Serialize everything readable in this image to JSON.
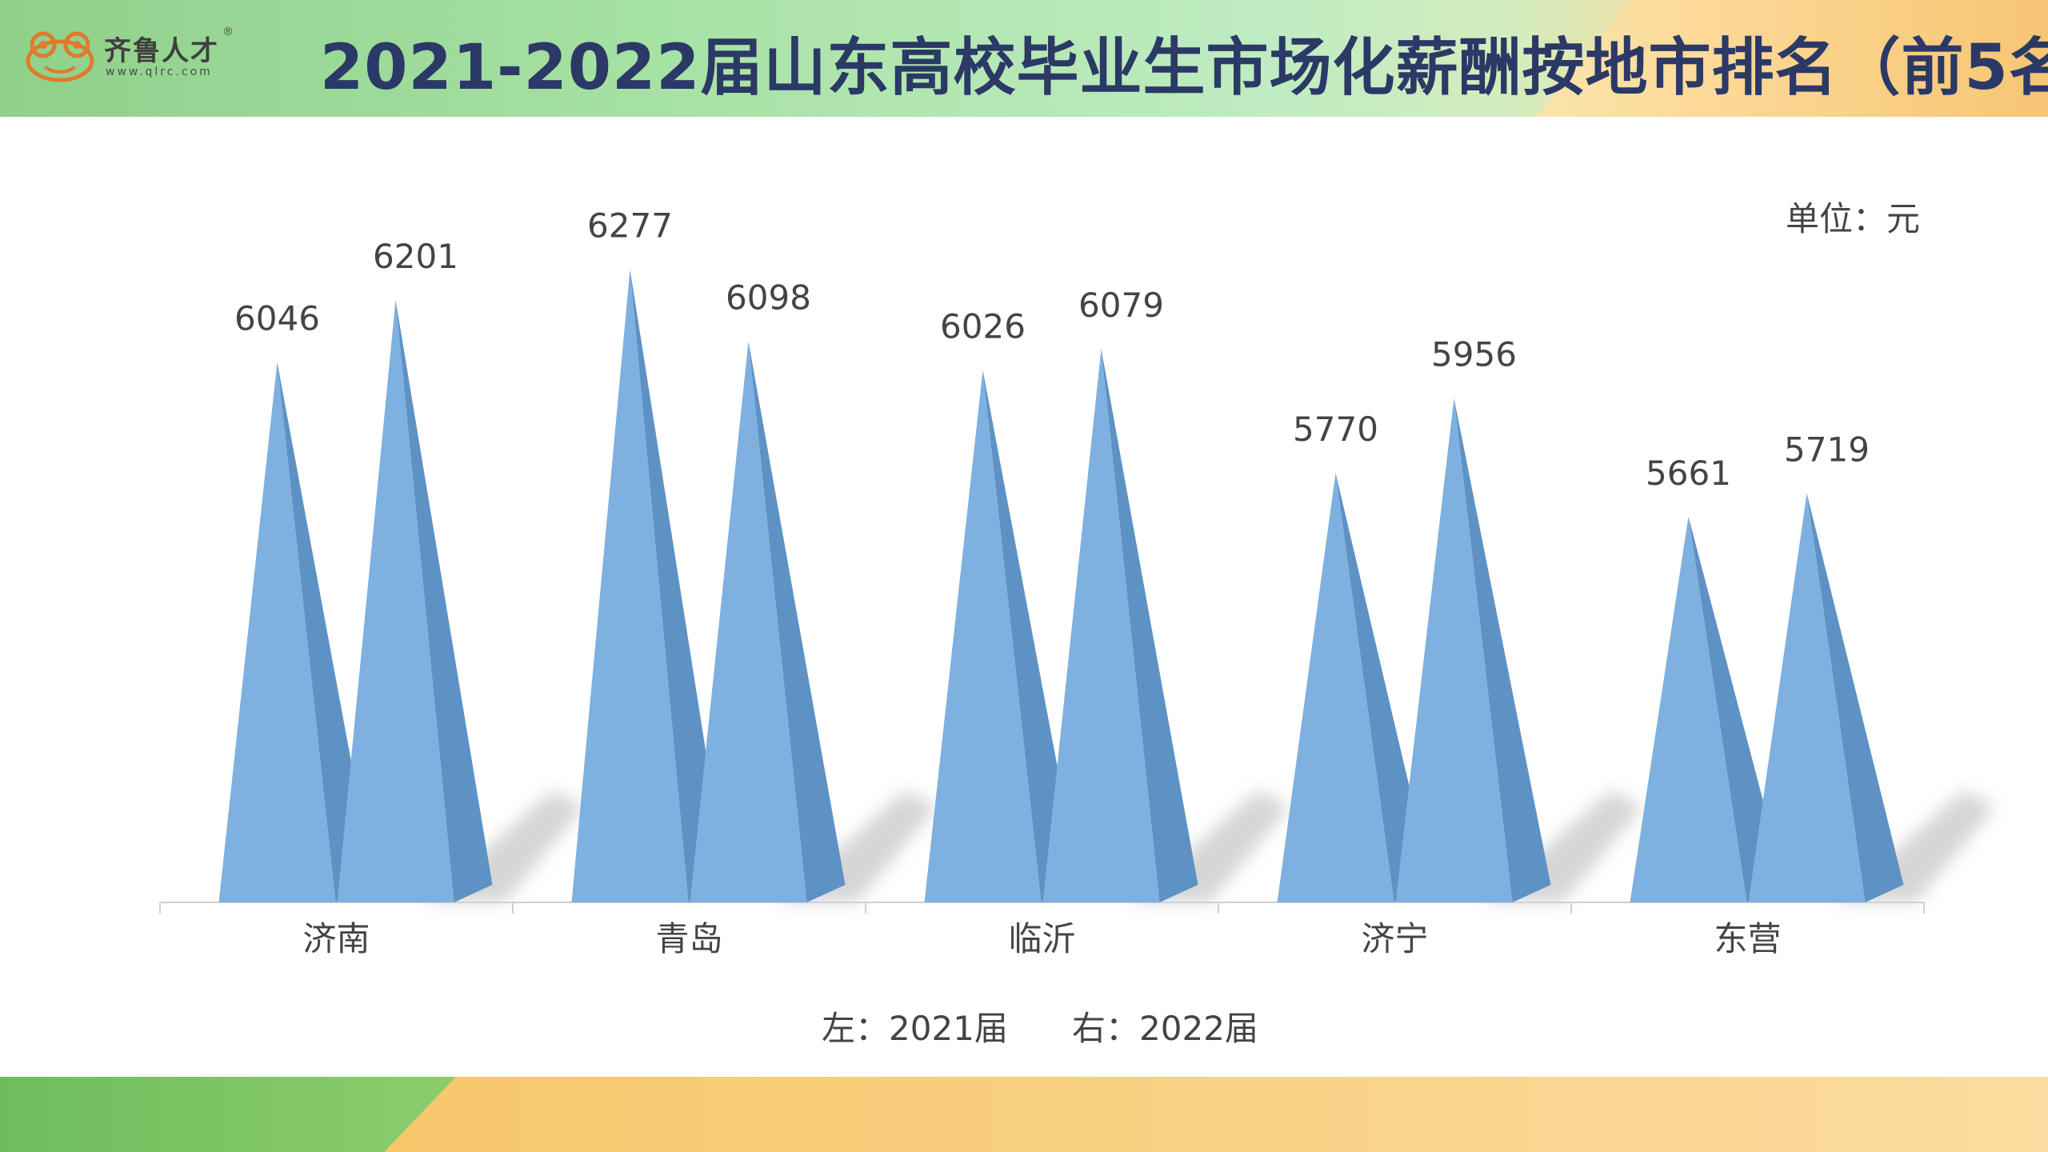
{
  "header": {
    "title": "2021-2022届山东高校毕业生市场化薪酬按地市排名（前5名）",
    "logo": {
      "name": "齐鲁人才",
      "url": "www.qlrc.com",
      "reg_mark": "®"
    }
  },
  "colors": {
    "bar_front": "#7eb0e0",
    "bar_side": "#5e92c4",
    "shadow": "#cfcfcf",
    "axis": "#d0d0d0",
    "text": "#444444",
    "title": "#2b3966"
  },
  "chart_data": {
    "type": "bar",
    "style": "3d-cone",
    "categories": [
      "济南",
      "青岛",
      "临沂",
      "济宁",
      "东营"
    ],
    "series": [
      {
        "name": "2021届",
        "values": [
          6046,
          6277,
          6026,
          5770,
          5661
        ]
      },
      {
        "name": "2022届",
        "values": [
          6201,
          6098,
          6079,
          5956,
          5719
        ]
      }
    ],
    "unit_label": "单位：元",
    "legend_text": "左：2021届      右：2022届",
    "legend_position": "bottom-center",
    "ylim": [
      4700,
      6350
    ],
    "grid": false
  }
}
